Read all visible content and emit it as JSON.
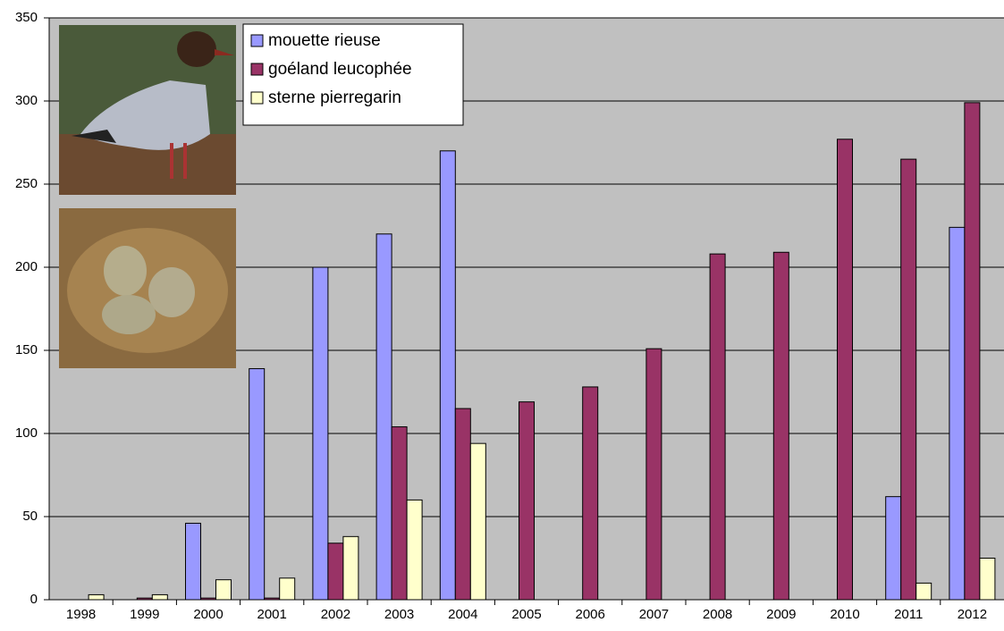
{
  "chart_data": {
    "type": "bar",
    "categories": [
      "1998",
      "1999",
      "2000",
      "2001",
      "2002",
      "2003",
      "2004",
      "2005",
      "2006",
      "2007",
      "2008",
      "2009",
      "2010",
      "2011",
      "2012"
    ],
    "series": [
      {
        "name": "mouette rieuse",
        "color": "#9999ff",
        "values": [
          0,
          0,
          46,
          139,
          200,
          220,
          270,
          0,
          0,
          0,
          0,
          0,
          0,
          62,
          224
        ]
      },
      {
        "name": "goéland leucophée",
        "color": "#993366",
        "values": [
          0,
          1,
          1,
          1,
          34,
          104,
          115,
          119,
          128,
          151,
          208,
          209,
          277,
          265,
          299
        ]
      },
      {
        "name": "sterne pierregarin",
        "color": "#ffffcc",
        "values": [
          3,
          3,
          12,
          13,
          38,
          60,
          94,
          0,
          0,
          0,
          0,
          0,
          0,
          10,
          25
        ]
      }
    ],
    "ylim": [
      0,
      350
    ],
    "yticks": [
      0,
      50,
      100,
      150,
      200,
      250,
      300,
      350
    ],
    "grid": true
  }
}
